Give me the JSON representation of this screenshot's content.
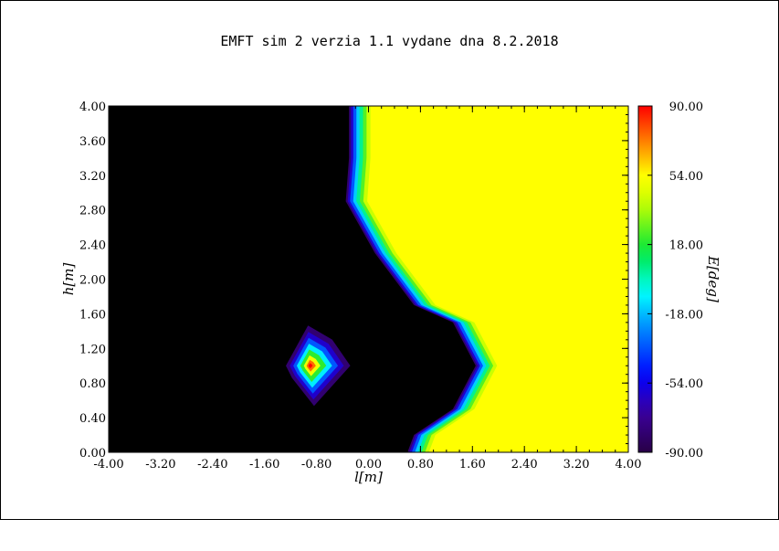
{
  "chart_data": {
    "type": "heatmap",
    "title": "EMFT sim 2 verzia 1.1 vydane dna 8.2.2018",
    "xlabel": "l[m]",
    "ylabel": "h[m]",
    "colorbar_label": "E[deg]",
    "xlim": [
      -4.0,
      4.0
    ],
    "ylim": [
      0.0,
      4.0
    ],
    "clim": [
      -90.0,
      90.0
    ],
    "x_ticks": [
      "-4.00",
      "-3.20",
      "-2.40",
      "-1.60",
      "-0.80",
      "0.00",
      "0.80",
      "1.60",
      "2.40",
      "3.20",
      "4.00"
    ],
    "y_ticks": [
      "0.00",
      "0.40",
      "0.80",
      "1.20",
      "1.60",
      "2.00",
      "2.40",
      "2.80",
      "3.20",
      "3.60",
      "4.00"
    ],
    "colorbar_ticks": [
      "-90.00",
      "-54.00",
      "-18.00",
      "18.00",
      "54.00",
      "90.00"
    ],
    "background_value": 54.0,
    "boundary": [
      [
        -0.3,
        4.0
      ],
      [
        -0.3,
        3.4
      ],
      [
        -0.35,
        2.9
      ],
      [
        0.1,
        2.3
      ],
      [
        0.7,
        1.7
      ],
      [
        1.3,
        1.5
      ],
      [
        1.65,
        1.0
      ],
      [
        1.3,
        0.5
      ],
      [
        0.7,
        0.2
      ],
      [
        0.6,
        0.0
      ]
    ],
    "low_region_value": -90.0,
    "hotspot": {
      "x": -0.9,
      "y": 1.0,
      "peak_value": 90.0
    }
  }
}
